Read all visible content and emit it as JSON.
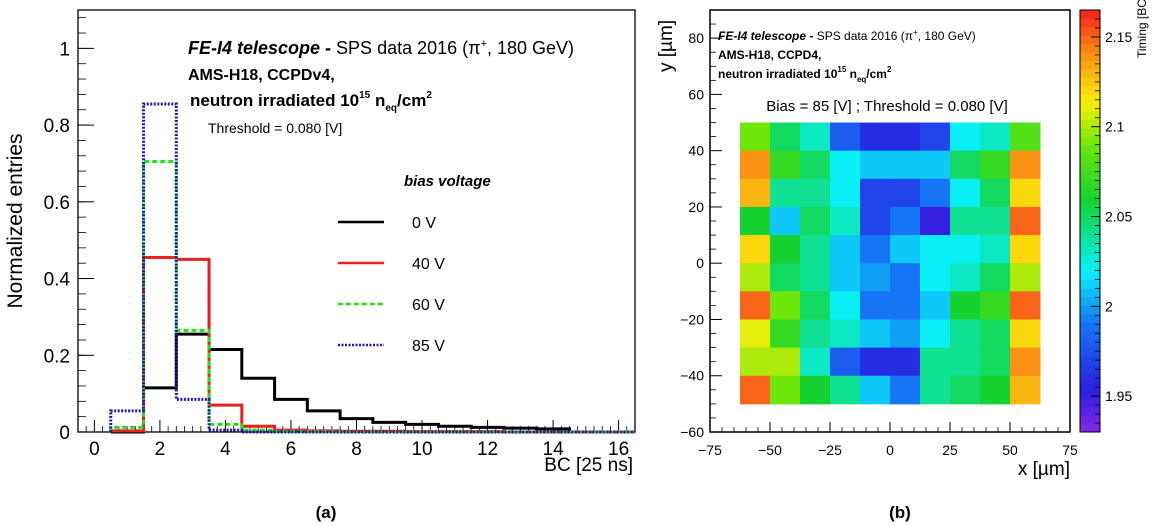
{
  "chart_data": [
    {
      "type": "histogram",
      "panel_label": "(a)",
      "xlabel": "BC [25 ns]",
      "ylabel": "Normalized entries",
      "xlim": [
        -0.5,
        16.5
      ],
      "ylim": [
        0,
        1.1
      ],
      "x_ticks": [
        0,
        2,
        4,
        6,
        8,
        10,
        12,
        14,
        16
      ],
      "y_ticks": [
        0,
        0.2,
        0.4,
        0.6,
        0.8,
        1
      ],
      "y_tick_labels": [
        "0",
        "0.2",
        "0.4",
        "0.6",
        "0.8",
        "1"
      ],
      "bin_edges": [
        0.5,
        1.5,
        2.5,
        3.5,
        4.5,
        5.5,
        6.5,
        7.5,
        8.5,
        9.5,
        10.5,
        11.5,
        12.5,
        13.5,
        14.5,
        15.5,
        16.5
      ],
      "annotations": {
        "title_bold": "FE-I4 telescope -",
        "title_rest": " SPS data 2016 (π",
        "title_sup": "+",
        "title_end": ", 180 GeV)",
        "line2": "AMS-H18, CCPDv4,",
        "line3_a": "neutron irradiated 10",
        "line3_sup": "15",
        "line3_b": " n",
        "line3_sub": "eq",
        "line3_c": "/cm",
        "line3_sup2": "2",
        "threshold": "Threshold = 0.080 [V]"
      },
      "legend": {
        "title": "bias voltage",
        "placement": "right"
      },
      "series": [
        {
          "name": "0 V",
          "color": "#000000",
          "style": "solid",
          "values": [
            0.0,
            0.115,
            0.255,
            0.215,
            0.14,
            0.085,
            0.055,
            0.035,
            0.025,
            0.02,
            0.015,
            0.012,
            0.01,
            0.008,
            0.0,
            0.0
          ]
        },
        {
          "name": "40 V",
          "color": "#e8201e",
          "style": "solid",
          "values": [
            0.003,
            0.455,
            0.45,
            0.07,
            0.015,
            0.005,
            0.003,
            0.002,
            0.002,
            0.001,
            0.001,
            0.001,
            0.0,
            0.0,
            0.0,
            0.0
          ]
        },
        {
          "name": "60 V",
          "color": "#22e01c",
          "style": "dashed",
          "values": [
            0.012,
            0.705,
            0.265,
            0.02,
            0.005,
            0.002,
            0.001,
            0.0,
            0.0,
            0.0,
            0.0,
            0.0,
            0.0,
            0.0,
            0.0,
            0.0
          ]
        },
        {
          "name": "85 V",
          "color": "#1c1ca8",
          "style": "dotted",
          "values": [
            0.055,
            0.855,
            0.085,
            0.005,
            0.0,
            0.0,
            0.0,
            0.0,
            0.0,
            0.0,
            0.0,
            0.0,
            0.0,
            0.0,
            0.0,
            0.0
          ]
        }
      ]
    },
    {
      "type": "heatmap",
      "panel_label": "(b)",
      "xlabel": "x [µm]",
      "ylabel": "y [µm]",
      "zlabel": "Timing [BC]",
      "xlim": [
        -75,
        75
      ],
      "ylim": [
        -60,
        90
      ],
      "zlim": [
        1.93,
        2.165
      ],
      "x_ticks": [
        -75,
        -50,
        -25,
        0,
        25,
        50,
        75
      ],
      "y_ticks": [
        -60,
        -40,
        -20,
        0,
        20,
        40,
        60,
        80
      ],
      "z_ticks": [
        1.95,
        2.0,
        2.05,
        2.1,
        2.15
      ],
      "z_tick_labels": [
        "1.95",
        "2",
        "2.05",
        "2.1",
        "2.15"
      ],
      "annotations": {
        "title_bold": "FE-I4 telescope -",
        "title_rest": " SPS data 2016 (π",
        "title_sup": "+",
        "title_end": ", 180 GeV)",
        "line2": "AMS-H18, CCPD4,",
        "line3_a": "neutron irradiated 10",
        "line3_sup": "15",
        "line3_b": " n",
        "line3_sub": "eq",
        "line3_c": "/cm",
        "line3_sup2": "2",
        "bias_threshold": "Bias = 85 [V] ; Threshold = 0.080 [V]"
      },
      "grid_x_edges": [
        -62.5,
        -50,
        -37.5,
        -25,
        -12.5,
        0,
        12.5,
        25,
        37.5,
        50,
        62.5
      ],
      "grid_y_edges": [
        -50,
        -40,
        -30,
        -20,
        -10,
        0,
        10,
        20,
        30,
        40,
        50
      ],
      "values_top_to_bottom": [
        [
          2.09,
          2.05,
          2.03,
          1.98,
          1.96,
          1.96,
          1.97,
          2.02,
          2.03,
          2.08
        ],
        [
          2.14,
          2.07,
          2.05,
          2.02,
          2.01,
          2.01,
          2.01,
          2.05,
          2.07,
          2.14
        ],
        [
          2.13,
          2.04,
          2.04,
          2.02,
          1.97,
          1.97,
          1.99,
          2.02,
          2.05,
          2.12
        ],
        [
          2.06,
          2.01,
          2.05,
          2.03,
          1.97,
          1.99,
          1.95,
          2.04,
          2.04,
          2.15
        ],
        [
          2.12,
          2.06,
          2.04,
          2.01,
          1.99,
          2.01,
          2.02,
          2.02,
          2.03,
          2.12
        ],
        [
          2.1,
          2.05,
          2.04,
          2.01,
          2.0,
          1.99,
          2.02,
          2.03,
          2.05,
          2.1
        ],
        [
          2.15,
          2.09,
          2.05,
          2.02,
          1.99,
          1.99,
          2.01,
          2.06,
          2.07,
          2.15
        ],
        [
          2.11,
          2.07,
          2.04,
          2.03,
          2.01,
          2.0,
          2.02,
          2.04,
          2.05,
          2.12
        ],
        [
          2.1,
          2.1,
          2.03,
          1.98,
          1.96,
          1.96,
          2.04,
          2.04,
          2.05,
          2.14
        ],
        [
          2.15,
          2.09,
          2.06,
          2.04,
          2.01,
          1.99,
          2.04,
          2.05,
          2.06,
          2.13
        ]
      ]
    }
  ]
}
